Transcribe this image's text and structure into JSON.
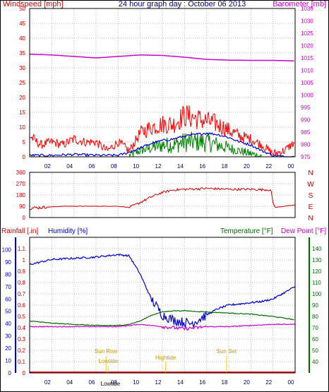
{
  "header": {
    "left_title": "Windspeed [mph]",
    "center_title": "24 hour graph day : October 06 2013",
    "right_title": "Barometer [mb]"
  },
  "colors": {
    "wind": "#e00000",
    "gust": "#ff0000",
    "avg": "#0000cc",
    "green": "#008000",
    "baro": "#cc00cc",
    "dir": "#cc0000",
    "hum": "#0000cc",
    "temp": "#006600",
    "dew": "#cc00cc",
    "rain": "#ff0000",
    "sun": "#ffcc00",
    "grid": "#bbbbbb",
    "frame": "#000000"
  },
  "chart_data": [
    {
      "type": "line",
      "title": "24 hour graph day : October 06 2013",
      "xlabel": "",
      "x_ticks": [
        "02",
        "04",
        "06",
        "08",
        "10",
        "12",
        "14",
        "16",
        "18",
        "20",
        "22",
        "00"
      ],
      "y_left": {
        "label": "Windspeed [mph]",
        "ticks": [
          0,
          5,
          10,
          15,
          20,
          25,
          30,
          35,
          40,
          45,
          50
        ],
        "ylim": [
          0,
          50
        ]
      },
      "y_right": {
        "label": "Barometer [mb]",
        "ticks": [
          975,
          980,
          985,
          990,
          995,
          1000,
          1005,
          1010,
          1015,
          1020,
          1025,
          1030,
          1035
        ],
        "ylim": [
          975,
          1035
        ]
      },
      "series": [
        {
          "name": "Barometer [mb]",
          "axis": "right",
          "x": [
            0,
            2,
            4,
            6,
            8,
            10,
            12,
            14,
            16,
            18,
            20,
            22,
            24
          ],
          "values": [
            1016.5,
            1016.2,
            1015.6,
            1015.0,
            1015.6,
            1016.2,
            1016.0,
            1015.3,
            1014.4,
            1014.1,
            1014.0,
            1014.0,
            1013.8
          ]
        },
        {
          "name": "gust",
          "axis": "left",
          "x": [
            0,
            1,
            2,
            3,
            4,
            5,
            6,
            7,
            8,
            9,
            10,
            11,
            12,
            13,
            14,
            15,
            16,
            17,
            18,
            19,
            20,
            21,
            22,
            23,
            24
          ],
          "values": [
            7,
            4,
            5,
            4,
            6,
            5,
            5,
            2,
            5,
            2,
            8,
            10,
            11,
            11,
            14,
            13,
            12,
            11,
            9,
            7,
            6,
            4,
            1,
            2,
            5
          ]
        },
        {
          "name": "avg",
          "axis": "left",
          "x": [
            0,
            2,
            4,
            6,
            8,
            9,
            10,
            11,
            12,
            13,
            14,
            15,
            16,
            17,
            18,
            19,
            20,
            21,
            22,
            23,
            24
          ],
          "values": [
            0.5,
            0.5,
            0.8,
            0.5,
            0.5,
            1.5,
            3,
            4.5,
            5.5,
            6,
            7,
            7.5,
            8,
            7.5,
            6.5,
            5,
            4,
            2,
            0.5,
            0,
            0
          ]
        },
        {
          "name": "wind",
          "axis": "left",
          "x": [
            9,
            10,
            11,
            12,
            13,
            14,
            15,
            16,
            17,
            18,
            19,
            20,
            21
          ],
          "values": [
            0.5,
            2,
            3,
            4,
            4,
            5,
            5,
            5,
            4,
            3,
            2,
            1,
            0
          ]
        }
      ]
    },
    {
      "type": "line",
      "title": "",
      "y_left": {
        "ticks": [
          0,
          90,
          180,
          270,
          360
        ],
        "ylim": [
          0,
          360
        ]
      },
      "y_right_labels": [
        "N",
        "W",
        "S",
        "E",
        "N"
      ],
      "series": [
        {
          "name": "direction",
          "x": [
            0,
            2,
            3,
            6,
            8,
            9,
            10,
            11,
            12,
            13,
            14,
            15,
            16,
            18,
            20,
            21.8,
            22,
            22.2,
            23,
            24
          ],
          "values": [
            75,
            85,
            90,
            90,
            90,
            80,
            120,
            165,
            200,
            220,
            225,
            228,
            232,
            225,
            225,
            220,
            120,
            80,
            90,
            100
          ]
        }
      ]
    },
    {
      "type": "line",
      "title": "",
      "y_left": {
        "label": "Rainfall [.in]",
        "ticks": [
          0,
          0.1,
          0.2,
          0.3,
          0.4,
          0.5,
          0.6,
          0.7,
          0.8,
          0.9,
          1,
          1.1
        ],
        "ylim": [
          0,
          1.2
        ]
      },
      "y_left2": {
        "label": "Humidity [%]",
        "ticks": [
          0,
          10,
          20,
          30,
          40,
          50,
          60,
          70,
          80,
          90,
          100
        ],
        "ylim": [
          0,
          100
        ]
      },
      "y_right": {
        "label": "Temperature [°F]",
        "label2": "Dew Point [°F]",
        "ticks": [
          40,
          50,
          60,
          70,
          80,
          90,
          100,
          110,
          120,
          130,
          140
        ],
        "ylim": [
          30,
          150
        ]
      },
      "annotations": [
        "Sun Rise",
        "Lowtide",
        "Hightide",
        "Sun Set",
        "Lowtide"
      ],
      "series": [
        {
          "name": "Humidity [%]",
          "x": [
            0,
            1,
            2,
            4,
            6,
            8,
            9,
            10,
            11,
            12,
            13,
            14,
            14.5,
            15,
            16,
            17,
            18,
            19,
            20,
            21,
            22,
            23,
            24
          ],
          "values": [
            88,
            90,
            92,
            93,
            94,
            96,
            95,
            80,
            60,
            47,
            43,
            41,
            40,
            42,
            47,
            52,
            55,
            56,
            57,
            58,
            60,
            65,
            70
          ]
        },
        {
          "name": "Temperature [°F]",
          "x": [
            0,
            2,
            4,
            6,
            8,
            9,
            10,
            11,
            12,
            13,
            14,
            16,
            18,
            20,
            22,
            24
          ],
          "values": [
            76,
            74,
            73,
            72,
            72,
            73,
            76,
            81,
            84,
            85,
            85,
            84,
            83,
            82,
            80,
            77
          ]
        },
        {
          "name": "Dew Point [°F]",
          "x": [
            0,
            2,
            4,
            6,
            8,
            9,
            10,
            11,
            12,
            13,
            14,
            15,
            16,
            18,
            20,
            22,
            24
          ],
          "values": [
            71,
            71,
            71,
            71,
            71,
            72,
            73,
            72,
            71,
            70,
            69,
            70,
            71,
            71,
            72,
            73,
            73
          ]
        },
        {
          "name": "Rainfall [.in]",
          "x": [
            0,
            24
          ],
          "values": [
            0,
            0
          ]
        }
      ]
    }
  ]
}
